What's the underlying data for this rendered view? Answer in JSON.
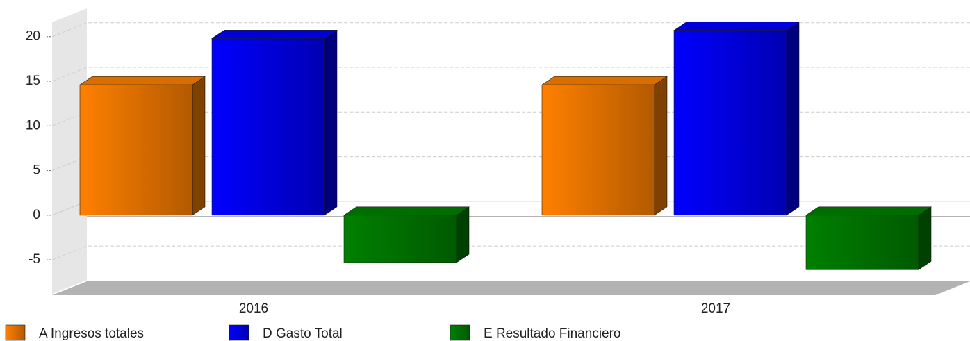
{
  "chart_data": {
    "type": "bar3d",
    "categories": [
      "2016",
      "2017"
    ],
    "series": [
      {
        "name": "A Ingresos totales",
        "color": "#ff8000",
        "values": [
          14.6,
          14.6
        ]
      },
      {
        "name": "D Gasto Total",
        "color": "#0000ff",
        "values": [
          19.8,
          20.7
        ]
      },
      {
        "name": "E Resultado Financiero",
        "color": "#008000",
        "values": [
          -5.3,
          -6.1
        ]
      }
    ],
    "ylim": [
      -8.8,
      22
    ],
    "yticks": [
      -5,
      0,
      5,
      10,
      15,
      20
    ],
    "grid": true
  }
}
